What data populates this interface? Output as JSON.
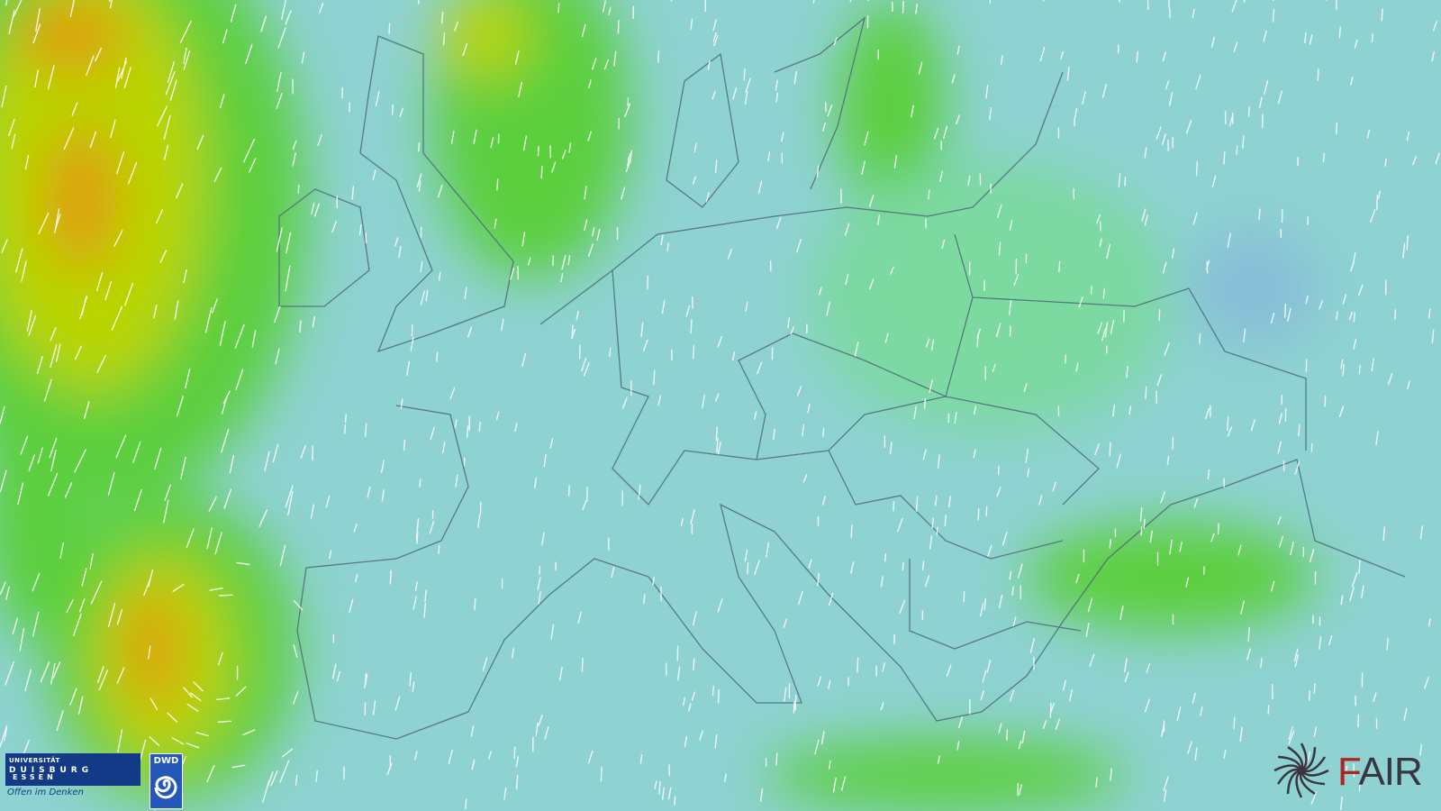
{
  "map": {
    "type": "wind-speed-forecast",
    "region": "Europe",
    "colors": {
      "calm": "#8ed2d2",
      "light": "#7cd9a0",
      "moderate": "#5ccf3c",
      "strong": "#b8d400",
      "very_strong": "#e09a10"
    },
    "overlays": [
      "wind-streaks",
      "country-borders",
      "coastlines"
    ]
  },
  "logos": {
    "university": {
      "line1": "UNIVERSITÄT",
      "line2": "DUISBURG",
      "line3": "ESSEN",
      "slogan": "Offen im Denken"
    },
    "dwd": {
      "label": "DWD"
    },
    "fair": {
      "first": "F",
      "rest": "AIR"
    }
  }
}
